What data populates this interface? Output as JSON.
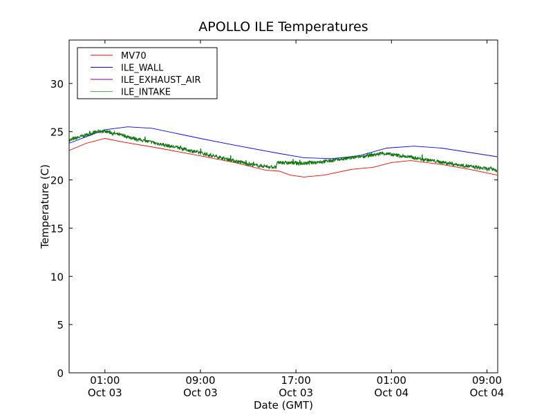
{
  "chart_data": {
    "type": "line",
    "title": "APOLLO ILE Temperatures",
    "xlabel": "Date (GMT)",
    "ylabel": "Temperature (C)",
    "x_units": "hours since Oct 03 00:00 GMT",
    "xlim": [
      -2.0,
      33.9
    ],
    "ylim": [
      0,
      34.5
    ],
    "yticks": [
      0,
      5,
      10,
      15,
      20,
      25,
      30
    ],
    "xticks": [
      {
        "value": 1,
        "label1": "01:00",
        "label2": "Oct 03"
      },
      {
        "value": 9,
        "label1": "09:00",
        "label2": "Oct 03"
      },
      {
        "value": 17,
        "label1": "17:00",
        "label2": "Oct 03"
      },
      {
        "value": 25,
        "label1": "01:00",
        "label2": "Oct 04"
      },
      {
        "value": 33,
        "label1": "09:00",
        "label2": "Oct 04"
      }
    ],
    "grid": false,
    "legend_position": "top-left",
    "series": [
      {
        "name": "MV70",
        "color": "#ff0000",
        "noisy": false,
        "x": [
          -2.0,
          -0.56,
          1.0,
          2.62,
          5.51,
          8.98,
          11.87,
          14.48,
          15.63,
          16.5,
          17.66,
          19.39,
          21.7,
          23.44,
          25.0,
          26.6,
          29.2,
          31.5,
          33.85
        ],
        "y": [
          23.05,
          23.8,
          24.3,
          23.9,
          23.3,
          22.5,
          21.8,
          21.0,
          20.9,
          20.5,
          20.3,
          20.5,
          21.1,
          21.3,
          21.8,
          22.0,
          21.6,
          21.1,
          20.5
        ]
      },
      {
        "name": "ILE_WALL",
        "color": "#0000ff",
        "noisy": false,
        "x": [
          -2.0,
          1.0,
          2.91,
          4.93,
          8.98,
          11.87,
          15.34,
          17.66,
          19.97,
          22.28,
          24.6,
          26.9,
          29.2,
          33.85
        ],
        "y": [
          23.8,
          25.2,
          25.5,
          25.35,
          24.3,
          23.6,
          22.8,
          22.3,
          22.2,
          22.5,
          23.3,
          23.5,
          23.3,
          22.4
        ]
      },
      {
        "name": "ILE_EXHAUST_AIR",
        "color": "#800080",
        "noisy": true,
        "x": [
          -2.0,
          0.31,
          1.0,
          3.78,
          7.25,
          10.72,
          13.61,
          15.34,
          15.46,
          17.66,
          19.97,
          22.86,
          24.31,
          26.9,
          30.4,
          33.85
        ],
        "y": [
          24.1,
          25.0,
          25.05,
          24.2,
          23.3,
          22.3,
          21.5,
          21.3,
          21.8,
          21.7,
          22.0,
          22.5,
          22.75,
          22.3,
          21.6,
          21.0
        ]
      },
      {
        "name": "ILE_INTAKE",
        "color": "#008000",
        "legend_color": "#4caf50",
        "noisy": true,
        "x": [
          -2.0,
          0.31,
          1.0,
          3.78,
          7.25,
          10.72,
          13.61,
          15.34,
          15.46,
          17.66,
          19.97,
          22.86,
          24.31,
          26.9,
          30.4,
          33.85
        ],
        "y": [
          24.1,
          25.0,
          25.05,
          24.2,
          23.3,
          22.3,
          21.5,
          21.3,
          21.8,
          21.7,
          22.0,
          22.5,
          22.75,
          22.3,
          21.6,
          21.0
        ]
      }
    ]
  }
}
